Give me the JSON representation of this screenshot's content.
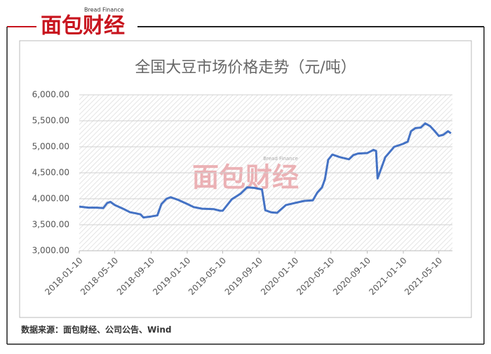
{
  "header": {
    "logo": "面包财经",
    "logo_en": "Bread Finance"
  },
  "watermark": {
    "text": "面包财经",
    "text_en": "Bread Finance"
  },
  "chart_data": {
    "type": "line",
    "title": "全国大豆市场价格走势（元/吨）",
    "x": [
      "2018-01-10",
      "2018-02-10",
      "2018-03-10",
      "2018-04-01",
      "2018-04-15",
      "2018-04-25",
      "2018-05-10",
      "2018-06-10",
      "2018-07-01",
      "2018-07-20",
      "2018-08-05",
      "2018-08-15",
      "2018-09-10",
      "2018-10-01",
      "2018-10-15",
      "2018-11-01",
      "2018-11-15",
      "2018-12-10",
      "2019-01-10",
      "2019-02-01",
      "2019-03-01",
      "2019-04-10",
      "2019-05-01",
      "2019-05-10",
      "2019-06-10",
      "2019-07-10",
      "2019-08-01",
      "2019-08-25",
      "2019-09-10",
      "2019-09-20",
      "2019-10-01",
      "2019-10-20",
      "2019-11-10",
      "2019-12-10",
      "2020-01-10",
      "2020-02-10",
      "2020-03-10",
      "2020-03-25",
      "2020-04-10",
      "2020-04-20",
      "2020-05-01",
      "2020-05-15",
      "2020-06-10",
      "2020-07-10",
      "2020-07-25",
      "2020-08-10",
      "2020-09-10",
      "2020-10-01",
      "2020-10-10",
      "2020-10-15",
      "2020-11-10",
      "2020-12-10",
      "2021-01-01",
      "2021-01-10",
      "2021-01-25",
      "2021-02-05",
      "2021-02-20",
      "2021-03-10",
      "2021-03-25",
      "2021-04-10",
      "2021-04-25",
      "2021-05-10",
      "2021-05-25",
      "2021-06-10",
      "2021-06-20"
    ],
    "values": [
      3850,
      3830,
      3830,
      3820,
      3920,
      3940,
      3880,
      3800,
      3740,
      3720,
      3700,
      3640,
      3660,
      3680,
      3900,
      4000,
      4030,
      3980,
      3900,
      3840,
      3810,
      3800,
      3770,
      3770,
      3990,
      4100,
      4220,
      4210,
      4190,
      4180,
      3780,
      3740,
      3730,
      3880,
      3920,
      3960,
      3970,
      4120,
      4220,
      4380,
      4750,
      4850,
      4800,
      4760,
      4840,
      4870,
      4880,
      4940,
      4920,
      4390,
      4800,
      5000,
      5040,
      5060,
      5100,
      5300,
      5360,
      5370,
      5450,
      5400,
      5310,
      5210,
      5230,
      5300,
      5260
    ],
    "color": "#4472c4",
    "xlim": [
      "2018-01-10",
      "2021-06-25"
    ],
    "xticks": [
      "2018-01-10",
      "2018-05-10",
      "2018-09-10",
      "2019-01-10",
      "2019-05-10",
      "2019-09-10",
      "2020-01-10",
      "2020-05-10",
      "2020-09-10",
      "2021-01-10",
      "2021-05-10"
    ],
    "ylim": [
      3000,
      6000
    ],
    "yticks": [
      {
        "value": 3000,
        "label": "3,000.00"
      },
      {
        "value": 3500,
        "label": "3,500.00"
      },
      {
        "value": 4000,
        "label": "4,000.00"
      },
      {
        "value": 4500,
        "label": "4,500.00"
      },
      {
        "value": 5000,
        "label": "5,000.00"
      },
      {
        "value": 5500,
        "label": "5,500.00"
      },
      {
        "value": 6000,
        "label": "6,000.00"
      }
    ],
    "grid": true
  },
  "footer": {
    "source": "数据来源：面包财经、公司公告、Wind"
  }
}
